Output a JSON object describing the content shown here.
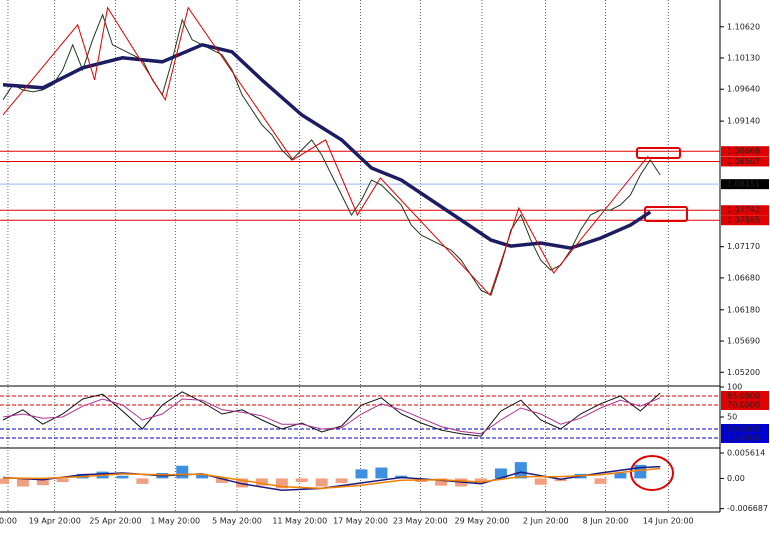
{
  "chart_data": [
    {
      "type": "candles-line",
      "xlim": [
        -0.3,
        72
      ],
      "ylim": [
        1.05,
        1.1104
      ],
      "yticks": [
        {
          "value": 1.1062,
          "label": "1.10620"
        },
        {
          "value": 1.1013,
          "label": "1.10130"
        },
        {
          "value": 1.0964,
          "label": "1.09640"
        },
        {
          "value": 1.0914,
          "label": "1.09140"
        },
        {
          "value": 1.0717,
          "label": "1.07170"
        },
        {
          "value": 1.0668,
          "label": "1.06680"
        },
        {
          "value": 1.0618,
          "label": "1.06180"
        },
        {
          "value": 1.0569,
          "label": "1.05690"
        },
        {
          "value": 1.052,
          "label": "1.05200"
        }
      ],
      "xticks": [
        {
          "value": 0.5,
          "label": "0:00"
        },
        {
          "value": 5.2,
          "label": "19 Apr 20:00"
        },
        {
          "value": 11.3,
          "label": "25 Apr 20:00"
        },
        {
          "value": 17.3,
          "label": "1 May 20:00"
        },
        {
          "value": 23.5,
          "label": "5 May 20:00"
        },
        {
          "value": 29.8,
          "label": "11 May 20:00"
        },
        {
          "value": 35.9,
          "label": "17 May 20:00"
        },
        {
          "value": 41.9,
          "label": "23 May 20:00"
        },
        {
          "value": 48.1,
          "label": "29 May 20:00"
        },
        {
          "value": 54.5,
          "label": "2 Jun 20:00"
        },
        {
          "value": 60.5,
          "label": "8 Jun 20:00"
        },
        {
          "value": 66.8,
          "label": "14 Jun 20:00"
        }
      ],
      "hlines": [
        {
          "value": 1.08668,
          "label": "1.08668",
          "color": "#e00000"
        },
        {
          "value": 1.08507,
          "label": "1.08507",
          "color": "#e00000"
        },
        {
          "value": 1.07742,
          "label": "1.07742",
          "color": "#e00000"
        },
        {
          "value": 1.07585,
          "label": "1.07585",
          "color": "#e00000"
        }
      ],
      "current": {
        "value": 1.08151,
        "label": "1.08151",
        "color": "#9ab8f0"
      },
      "series": [
        {
          "name": "close",
          "color": "#1f3a1f",
          "width": 1,
          "x": [
            0,
            1,
            2,
            3,
            4,
            5,
            6,
            7,
            8,
            9,
            10,
            11,
            12,
            13,
            14,
            15,
            16,
            17,
            18,
            19,
            20,
            21,
            22,
            23,
            24,
            25,
            26,
            27,
            28,
            29,
            30,
            31,
            32,
            33,
            34,
            35,
            36,
            37,
            38,
            39,
            40,
            41,
            42,
            43,
            44,
            45,
            46,
            47,
            48,
            49,
            50,
            51,
            52,
            53,
            54,
            55,
            56,
            57,
            58,
            59,
            60,
            61,
            62,
            63,
            64,
            65,
            66
          ],
          "values": [
            1.09473,
            1.09709,
            1.0963,
            1.09599,
            1.0963,
            1.09709,
            1.09944,
            1.10337,
            1.09944,
            1.10416,
            1.10809,
            1.10337,
            1.10259,
            1.1018,
            1.10102,
            1.09787,
            1.09552,
            1.10102,
            1.1073,
            1.10416,
            1.10337,
            1.10259,
            1.1018,
            1.09944,
            1.09552,
            1.09316,
            1.0908,
            1.08923,
            1.08688,
            1.08531,
            1.08688,
            1.08845,
            1.08609,
            1.08295,
            1.07981,
            1.07667,
            1.07902,
            1.08216,
            1.08138,
            1.07981,
            1.07824,
            1.07509,
            1.07352,
            1.07274,
            1.07195,
            1.07117,
            1.0696,
            1.06724,
            1.06488,
            1.0641,
            1.06881,
            1.07431,
            1.07667,
            1.07274,
            1.0696,
            1.06802,
            1.06881,
            1.07117,
            1.07431,
            1.07667,
            1.07745,
            1.07745,
            1.07824,
            1.07981,
            1.08295,
            1.08531,
            1.08295
          ]
        },
        {
          "name": "ma",
          "color": "#1c1c63",
          "width": 3.5,
          "x": [
            0,
            4,
            8,
            12,
            16,
            20,
            23,
            26,
            30,
            34,
            37,
            40,
            43,
            46,
            49,
            51,
            54,
            57,
            60,
            63,
            65
          ],
          "values": [
            1.09709,
            1.09662,
            1.09976,
            1.10133,
            1.1007,
            1.10337,
            1.10227,
            1.09787,
            1.09238,
            1.08845,
            1.08405,
            1.08216,
            1.07902,
            1.07588,
            1.07274,
            1.07179,
            1.07227,
            1.07148,
            1.07305,
            1.07509,
            1.07714
          ]
        },
        {
          "name": "zigzag",
          "color": "#e00000",
          "width": 1,
          "x": [
            0,
            7.5,
            9.2,
            10.5,
            16.3,
            18.6,
            29.1,
            32.4,
            35.6,
            37.9,
            48.9,
            51.8,
            55.3,
            64.8
          ],
          "values": [
            1.09238,
            1.10651,
            1.09787,
            1.10919,
            1.09473,
            1.10919,
            1.08531,
            1.08845,
            1.07667,
            1.08248,
            1.0641,
            1.07777,
            1.06755,
            1.08594
          ]
        }
      ]
    },
    {
      "type": "oscillator",
      "xlim": [
        -0.3,
        72
      ],
      "ylim": [
        0,
        100
      ],
      "yticks": [
        100,
        50
      ],
      "levels": [
        {
          "value": 85,
          "label": "85.0000",
          "color": "#e00000"
        },
        {
          "value": 70,
          "label": "70.0000",
          "color": "#e00000"
        },
        {
          "value": 30,
          "label": "30.0000",
          "color": "#0000d0"
        },
        {
          "value": 15,
          "label": "15.0000",
          "color": "#0000d0"
        }
      ],
      "series": [
        {
          "name": "main",
          "color": "#111111",
          "x": [
            0,
            2,
            4,
            6,
            8,
            10,
            12,
            14,
            16,
            18,
            20,
            22,
            24,
            26,
            28,
            30,
            32,
            34,
            36,
            38,
            40,
            42,
            44,
            46,
            48,
            50,
            52,
            54,
            56,
            58,
            60,
            62,
            64,
            66
          ],
          "values": [
            45,
            62,
            38,
            55,
            80,
            88,
            60,
            30,
            70,
            92,
            75,
            55,
            62,
            45,
            30,
            40,
            25,
            35,
            70,
            82,
            55,
            40,
            28,
            22,
            18,
            60,
            78,
            45,
            30,
            55,
            72,
            85,
            60,
            90
          ]
        },
        {
          "name": "signal",
          "color": "#b03090",
          "x": [
            0,
            2,
            4,
            6,
            8,
            10,
            12,
            14,
            16,
            18,
            20,
            22,
            24,
            26,
            28,
            30,
            32,
            34,
            36,
            38,
            40,
            42,
            44,
            46,
            48,
            50,
            52,
            54,
            56,
            58,
            60,
            62,
            64,
            66
          ],
          "values": [
            50,
            55,
            48,
            50,
            68,
            80,
            70,
            45,
            55,
            80,
            78,
            62,
            58,
            52,
            38,
            38,
            30,
            32,
            55,
            72,
            62,
            48,
            34,
            26,
            22,
            45,
            65,
            55,
            38,
            48,
            65,
            78,
            68,
            82
          ]
        }
      ]
    },
    {
      "type": "macd",
      "xlim": [
        -0.3,
        72
      ],
      "ylim": [
        -0.0072,
        0.0065
      ],
      "yticks": [
        0.005614,
        {
          "value": 0,
          "label": "0.00"
        },
        -0.006687
      ],
      "histogram": {
        "pos_color": "#3d8fe0",
        "neg_color": "#f0a080",
        "x": [
          0,
          2,
          4,
          6,
          8,
          10,
          12,
          14,
          16,
          18,
          20,
          22,
          24,
          26,
          28,
          30,
          32,
          34,
          36,
          38,
          40,
          42,
          44,
          46,
          48,
          50,
          52,
          54,
          56,
          58,
          60,
          62,
          64
        ],
        "values": [
          -0.0012,
          -0.0018,
          -0.0015,
          -0.0008,
          0.001,
          0.0015,
          0.0006,
          -0.0012,
          0.0012,
          0.0028,
          0.001,
          -0.001,
          -0.002,
          -0.0016,
          -0.0022,
          -0.0008,
          -0.0018,
          -0.001,
          0.002,
          0.0024,
          0.0006,
          -0.0008,
          -0.0016,
          -0.0018,
          -0.001,
          0.0022,
          0.0036,
          -0.0014,
          -0.0006,
          0.001,
          -0.0012,
          0.0012,
          0.003
        ]
      },
      "series": [
        {
          "name": "macd",
          "color": "#1c1c80",
          "x": [
            0,
            4,
            8,
            12,
            16,
            20,
            24,
            28,
            32,
            36,
            40,
            44,
            48,
            52,
            56,
            60,
            64,
            66
          ],
          "values": [
            0.0002,
            -0.0003,
            0.0008,
            0.0012,
            0.0006,
            0.001,
            -0.0012,
            -0.0026,
            -0.0022,
            -0.001,
            0.0002,
            -0.0004,
            -0.0012,
            0.0014,
            -0.0002,
            0.0012,
            0.0024,
            0.0026
          ]
        },
        {
          "name": "signal",
          "color": "#f08000",
          "x": [
            0,
            4,
            8,
            12,
            16,
            20,
            24,
            28,
            32,
            36,
            40,
            44,
            48,
            52,
            56,
            60,
            64,
            66
          ],
          "values": [
            0.0001,
            0,
            0.0004,
            0.001,
            0.0008,
            0.0009,
            -0.0004,
            -0.0018,
            -0.0022,
            -0.0015,
            -0.0004,
            -0.0003,
            -0.0008,
            0.0004,
            0.0004,
            0.0008,
            0.0018,
            0.0022
          ]
        }
      ]
    }
  ]
}
